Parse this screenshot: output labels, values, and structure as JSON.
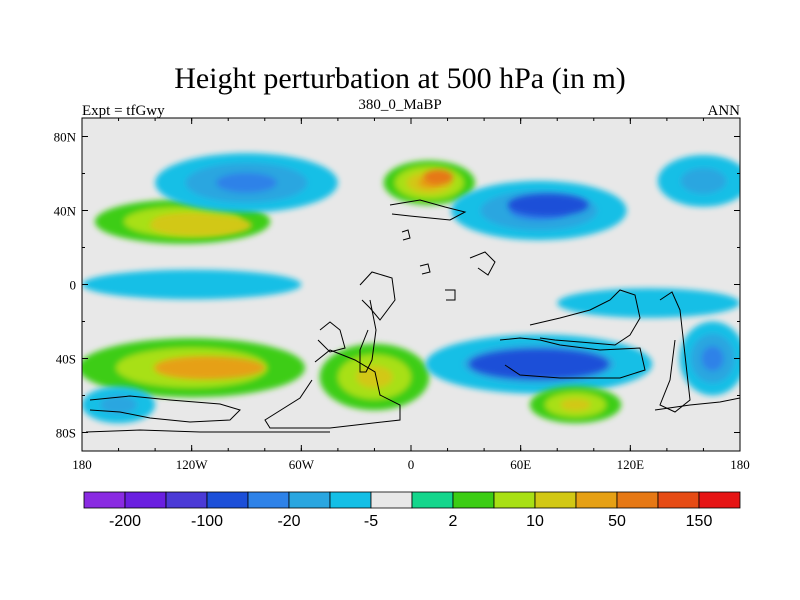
{
  "title": "Height perturbation at 500 hPa (in m)",
  "left_string": "Expt = tfGwy",
  "center_string": "380_0_MaBP",
  "right_string": "ANN",
  "map": {
    "projection": "cylindrical-equidistant",
    "lon_range": [
      -180,
      180
    ],
    "lat_range": [
      -90,
      90
    ],
    "x_ticks": [
      {
        "value": -180,
        "label": "180"
      },
      {
        "value": -120,
        "label": "120W"
      },
      {
        "value": -60,
        "label": "60W"
      },
      {
        "value": 0,
        "label": "0"
      },
      {
        "value": 60,
        "label": "60E"
      },
      {
        "value": 120,
        "label": "120E"
      },
      {
        "value": 180,
        "label": "180"
      }
    ],
    "y_ticks": [
      {
        "value": 80,
        "label": "80N"
      },
      {
        "value": 40,
        "label": "40N"
      },
      {
        "value": 0,
        "label": "0"
      },
      {
        "value": -40,
        "label": "40S"
      },
      {
        "value": -80,
        "label": "80S"
      }
    ]
  },
  "colorbar": {
    "colors": [
      "#8a2be2",
      "#6a1fe0",
      "#4b3ad6",
      "#1c4fd8",
      "#2e82e8",
      "#2aa6e0",
      "#14bfe6",
      "#e8e8e8",
      "#14d68c",
      "#3ccd14",
      "#a8e014",
      "#d2c814",
      "#e6a014",
      "#e67814",
      "#e64b14",
      "#e61414"
    ],
    "labels": [
      {
        "boundary": 1,
        "text": "-200"
      },
      {
        "boundary": 3,
        "text": "-100"
      },
      {
        "boundary": 5,
        "text": "-20"
      },
      {
        "boundary": 7,
        "text": "-5"
      },
      {
        "boundary": 9,
        "text": "2"
      },
      {
        "boundary": 11,
        "text": "10"
      },
      {
        "boundary": 13,
        "text": "50"
      },
      {
        "boundary": 15,
        "text": "150"
      }
    ]
  },
  "field_blobs": [
    {
      "name": "nh-high-pacific",
      "lon": -125,
      "lat": 34,
      "rx": 48,
      "ry": 12,
      "levels": [
        9,
        10,
        11
      ]
    },
    {
      "name": "nh-high-pacific-core",
      "lon": -115,
      "lat": 32,
      "rx": 28,
      "ry": 6,
      "levels": [
        11
      ]
    },
    {
      "name": "nh-high-europe",
      "lon": 10,
      "lat": 55,
      "rx": 25,
      "ry": 12,
      "levels": [
        9,
        10,
        11,
        12
      ]
    },
    {
      "name": "nh-high-europe-core",
      "lon": 15,
      "lat": 58,
      "rx": 8,
      "ry": 4,
      "levels": [
        13
      ]
    },
    {
      "name": "nh-low-pacific",
      "lon": -90,
      "lat": 55,
      "rx": 50,
      "ry": 16,
      "levels": [
        6,
        5,
        4
      ]
    },
    {
      "name": "nh-low-asia",
      "lon": 70,
      "lat": 40,
      "rx": 48,
      "ry": 16,
      "levels": [
        6,
        5,
        4
      ]
    },
    {
      "name": "nh-low-asia-core",
      "lon": 75,
      "lat": 43,
      "rx": 22,
      "ry": 6,
      "levels": [
        3
      ]
    },
    {
      "name": "nh-low-east",
      "lon": 160,
      "lat": 56,
      "rx": 25,
      "ry": 14,
      "levels": [
        6,
        5
      ]
    },
    {
      "name": "trop-low-pacific",
      "lon": -120,
      "lat": 0,
      "rx": 60,
      "ry": 8,
      "levels": [
        6
      ]
    },
    {
      "name": "trop-low-indian",
      "lon": 130,
      "lat": -10,
      "rx": 50,
      "ry": 8,
      "levels": [
        6
      ]
    },
    {
      "name": "sh-high-pacific",
      "lon": -120,
      "lat": -45,
      "rx": 62,
      "ry": 16,
      "levels": [
        9,
        10,
        11
      ]
    },
    {
      "name": "sh-high-pacific-core",
      "lon": -110,
      "lat": -45,
      "rx": 30,
      "ry": 6,
      "levels": [
        12
      ]
    },
    {
      "name": "sh-high-atlantic",
      "lon": -20,
      "lat": -50,
      "rx": 30,
      "ry": 18,
      "levels": [
        9,
        10,
        11
      ]
    },
    {
      "name": "sh-low-indian",
      "lon": 70,
      "lat": -43,
      "rx": 62,
      "ry": 16,
      "levels": [
        6,
        5,
        4
      ]
    },
    {
      "name": "sh-low-indian-core",
      "lon": 70,
      "lat": -43,
      "rx": 38,
      "ry": 8,
      "levels": [
        3
      ]
    },
    {
      "name": "sh-low-east",
      "lon": 165,
      "lat": -40,
      "rx": 18,
      "ry": 20,
      "levels": [
        6,
        5,
        4
      ]
    },
    {
      "name": "sh-high-south-indian",
      "lon": 90,
      "lat": -65,
      "rx": 25,
      "ry": 10,
      "levels": [
        9,
        10,
        11
      ]
    },
    {
      "name": "sh-low-polar",
      "lon": -160,
      "lat": -65,
      "rx": 20,
      "ry": 10,
      "levels": [
        6,
        5
      ]
    }
  ]
}
